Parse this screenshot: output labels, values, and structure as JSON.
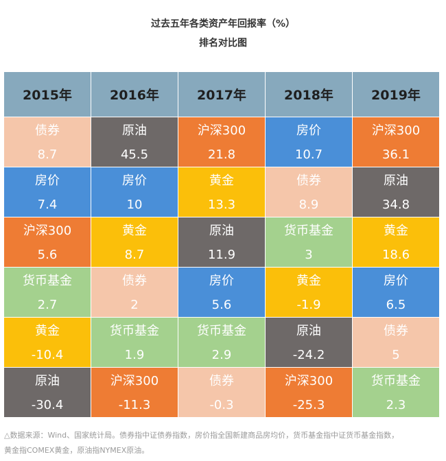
{
  "title": "过去五年各类资产年回报率（%）",
  "subtitle": "排名对比图",
  "footnote_line1": "△数据来源：Wind、国家统计局。债券指中证债券指数，房价指全国新建商品房均价，货币基金指中证货币基金指数，",
  "footnote_line2": "黄金指COMEX黄金，原油指NYMEX原油。",
  "colors": {
    "header": "#87a9bd",
    "债券": "#f5c6aa",
    "原油": "#6e6968",
    "沪深300": "#ee7c34",
    "房价": "#4a8fd8",
    "黄金": "#fbbf0a",
    "货币基金": "#a4d18e"
  },
  "chart_data": {
    "type": "table",
    "title": "过去五年各类资产年回报率（%）",
    "subtitle": "排名对比图",
    "columns": [
      "2015年",
      "2016年",
      "2017年",
      "2018年",
      "2019年"
    ],
    "rows": [
      [
        {
          "asset": "债券",
          "value": "8.7"
        },
        {
          "asset": "原油",
          "value": "45.5"
        },
        {
          "asset": "沪深300",
          "value": "21.8"
        },
        {
          "asset": "房价",
          "value": "10.7"
        },
        {
          "asset": "沪深300",
          "value": "36.1"
        }
      ],
      [
        {
          "asset": "房价",
          "value": "7.4"
        },
        {
          "asset": "房价",
          "value": "10"
        },
        {
          "asset": "黄金",
          "value": "13.3"
        },
        {
          "asset": "债券",
          "value": "8.9"
        },
        {
          "asset": "原油",
          "value": "34.8"
        }
      ],
      [
        {
          "asset": "沪深300",
          "value": "5.6"
        },
        {
          "asset": "黄金",
          "value": "8.7"
        },
        {
          "asset": "原油",
          "value": "11.9"
        },
        {
          "asset": "货币基金",
          "value": "3"
        },
        {
          "asset": "黄金",
          "value": "18.6"
        }
      ],
      [
        {
          "asset": "货币基金",
          "value": "2.7"
        },
        {
          "asset": "债券",
          "value": "2"
        },
        {
          "asset": "房价",
          "value": "5.6"
        },
        {
          "asset": "黄金",
          "value": "-1.9"
        },
        {
          "asset": "房价",
          "value": "6.5"
        }
      ],
      [
        {
          "asset": "黄金",
          "value": "-10.4"
        },
        {
          "asset": "货币基金",
          "value": "1.9"
        },
        {
          "asset": "货币基金",
          "value": "2.9"
        },
        {
          "asset": "原油",
          "value": "-24.2"
        },
        {
          "asset": "债券",
          "value": "5"
        }
      ],
      [
        {
          "asset": "原油",
          "value": "-30.4"
        },
        {
          "asset": "沪深300",
          "value": "-11.3"
        },
        {
          "asset": "债券",
          "value": "-0.3"
        },
        {
          "asset": "沪深300",
          "value": "-25.3"
        },
        {
          "asset": "货币基金",
          "value": "2.3"
        }
      ]
    ]
  }
}
